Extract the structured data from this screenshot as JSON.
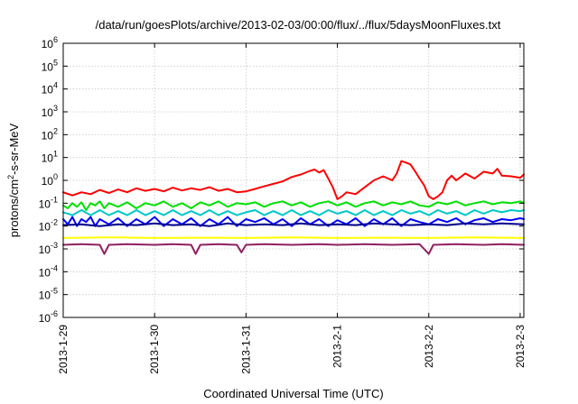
{
  "chart_data": {
    "type": "line",
    "title": "/data/run/goesPlots/archive/2013-02-03/00:00/flux/../flux/5daysMoonFluxes.txt",
    "xlabel": "Coordinated Universal Time (UTC)",
    "ylabel": {
      "base": "protons/cm",
      "sup": "2",
      "rest": "-s-sr-MeV"
    },
    "yscale": "log",
    "ylim": [
      1e-06,
      1000000.0
    ],
    "xlim": [
      0,
      5.04
    ],
    "grid": true,
    "y_ticks": [
      {
        "value": 1e-06,
        "base": "10",
        "exp": "-6"
      },
      {
        "value": 1e-05,
        "base": "10",
        "exp": "-5"
      },
      {
        "value": 0.0001,
        "base": "10",
        "exp": "-4"
      },
      {
        "value": 0.001,
        "base": "10",
        "exp": "-3"
      },
      {
        "value": 0.01,
        "base": "10",
        "exp": "-2"
      },
      {
        "value": 0.1,
        "base": "10",
        "exp": "-1"
      },
      {
        "value": 1,
        "base": "10",
        "exp": "0"
      },
      {
        "value": 10,
        "base": "10",
        "exp": "1"
      },
      {
        "value": 100,
        "base": "10",
        "exp": "2"
      },
      {
        "value": 1000,
        "base": "10",
        "exp": "3"
      },
      {
        "value": 10000,
        "base": "10",
        "exp": "4"
      },
      {
        "value": 100000,
        "base": "10",
        "exp": "5"
      },
      {
        "value": 1000000,
        "base": "10",
        "exp": "6"
      }
    ],
    "x_ticks": [
      {
        "day": 0,
        "label": "2013-1-29"
      },
      {
        "day": 1,
        "label": "2013-1-30"
      },
      {
        "day": 2,
        "label": "2013-1-31"
      },
      {
        "day": 3,
        "label": "2013-2-1"
      },
      {
        "day": 4,
        "label": "2013-2-2"
      },
      {
        "day": 5,
        "label": "2013-2-3"
      }
    ],
    "series": [
      {
        "color": "#ff0000",
        "points": [
          [
            0,
            0.3
          ],
          [
            0.1,
            0.22
          ],
          [
            0.2,
            0.3
          ],
          [
            0.3,
            0.25
          ],
          [
            0.4,
            0.38
          ],
          [
            0.5,
            0.28
          ],
          [
            0.6,
            0.4
          ],
          [
            0.7,
            0.3
          ],
          [
            0.8,
            0.45
          ],
          [
            0.9,
            0.35
          ],
          [
            1.0,
            0.42
          ],
          [
            1.1,
            0.33
          ],
          [
            1.2,
            0.48
          ],
          [
            1.3,
            0.36
          ],
          [
            1.4,
            0.45
          ],
          [
            1.5,
            0.38
          ],
          [
            1.6,
            0.5
          ],
          [
            1.7,
            0.35
          ],
          [
            1.8,
            0.42
          ],
          [
            1.9,
            0.3
          ],
          [
            2.0,
            0.33
          ],
          [
            2.1,
            0.42
          ],
          [
            2.2,
            0.55
          ],
          [
            2.3,
            0.7
          ],
          [
            2.4,
            0.9
          ],
          [
            2.5,
            1.4
          ],
          [
            2.6,
            1.8
          ],
          [
            2.7,
            2.6
          ],
          [
            2.75,
            3.0
          ],
          [
            2.8,
            2.2
          ],
          [
            2.85,
            2.8
          ],
          [
            2.9,
            1.2
          ],
          [
            2.95,
            0.5
          ],
          [
            3.0,
            0.15
          ],
          [
            3.05,
            0.2
          ],
          [
            3.1,
            0.3
          ],
          [
            3.2,
            0.25
          ],
          [
            3.3,
            0.5
          ],
          [
            3.4,
            1.0
          ],
          [
            3.5,
            1.5
          ],
          [
            3.6,
            1.0
          ],
          [
            3.65,
            2.0
          ],
          [
            3.7,
            7.0
          ],
          [
            3.75,
            6.0
          ],
          [
            3.8,
            5.0
          ],
          [
            3.85,
            2.5
          ],
          [
            3.9,
            1.2
          ],
          [
            3.95,
            0.6
          ],
          [
            4.0,
            0.2
          ],
          [
            4.05,
            0.15
          ],
          [
            4.1,
            0.2
          ],
          [
            4.15,
            0.3
          ],
          [
            4.2,
            1.0
          ],
          [
            4.25,
            1.6
          ],
          [
            4.3,
            1.0
          ],
          [
            4.4,
            2.0
          ],
          [
            4.5,
            1.2
          ],
          [
            4.6,
            2.4
          ],
          [
            4.7,
            2.0
          ],
          [
            4.75,
            3.2
          ],
          [
            4.8,
            1.6
          ],
          [
            4.9,
            1.5
          ],
          [
            5.0,
            1.3
          ],
          [
            5.04,
            1.8
          ]
        ]
      },
      {
        "color": "#00e000",
        "points": [
          [
            0,
            0.08
          ],
          [
            0.05,
            0.06
          ],
          [
            0.1,
            0.1
          ],
          [
            0.15,
            0.07
          ],
          [
            0.2,
            0.11
          ],
          [
            0.25,
            0.05
          ],
          [
            0.3,
            0.1
          ],
          [
            0.35,
            0.08
          ],
          [
            0.4,
            0.12
          ],
          [
            0.45,
            0.06
          ],
          [
            0.5,
            0.1
          ],
          [
            0.6,
            0.07
          ],
          [
            0.7,
            0.11
          ],
          [
            0.8,
            0.06
          ],
          [
            0.9,
            0.1
          ],
          [
            1.0,
            0.08
          ],
          [
            1.1,
            0.12
          ],
          [
            1.2,
            0.07
          ],
          [
            1.3,
            0.1
          ],
          [
            1.4,
            0.06
          ],
          [
            1.5,
            0.11
          ],
          [
            1.6,
            0.08
          ],
          [
            1.7,
            0.12
          ],
          [
            1.8,
            0.07
          ],
          [
            1.9,
            0.1
          ],
          [
            2.0,
            0.09
          ],
          [
            2.1,
            0.11
          ],
          [
            2.2,
            0.07
          ],
          [
            2.3,
            0.1
          ],
          [
            2.4,
            0.12
          ],
          [
            2.5,
            0.08
          ],
          [
            2.6,
            0.11
          ],
          [
            2.7,
            0.07
          ],
          [
            2.8,
            0.1
          ],
          [
            2.9,
            0.12
          ],
          [
            3.0,
            0.08
          ],
          [
            3.1,
            0.11
          ],
          [
            3.2,
            0.07
          ],
          [
            3.3,
            0.1
          ],
          [
            3.4,
            0.12
          ],
          [
            3.5,
            0.08
          ],
          [
            3.6,
            0.11
          ],
          [
            3.7,
            0.09
          ],
          [
            3.8,
            0.12
          ],
          [
            3.9,
            0.08
          ],
          [
            4.0,
            0.07
          ],
          [
            4.1,
            0.11
          ],
          [
            4.2,
            0.09
          ],
          [
            4.3,
            0.12
          ],
          [
            4.4,
            0.08
          ],
          [
            4.5,
            0.1
          ],
          [
            4.6,
            0.12
          ],
          [
            4.7,
            0.09
          ],
          [
            4.8,
            0.11
          ],
          [
            4.9,
            0.1
          ],
          [
            5.0,
            0.12
          ],
          [
            5.04,
            0.1
          ]
        ]
      },
      {
        "color": "#00c8c8",
        "points": [
          [
            0,
            0.04
          ],
          [
            0.1,
            0.03
          ],
          [
            0.2,
            0.05
          ],
          [
            0.3,
            0.03
          ],
          [
            0.4,
            0.05
          ],
          [
            0.5,
            0.03
          ],
          [
            0.6,
            0.045
          ],
          [
            0.7,
            0.03
          ],
          [
            0.8,
            0.05
          ],
          [
            0.9,
            0.03
          ],
          [
            1.0,
            0.045
          ],
          [
            1.1,
            0.03
          ],
          [
            1.2,
            0.05
          ],
          [
            1.3,
            0.03
          ],
          [
            1.4,
            0.045
          ],
          [
            1.5,
            0.03
          ],
          [
            1.6,
            0.05
          ],
          [
            1.7,
            0.03
          ],
          [
            1.8,
            0.045
          ],
          [
            1.9,
            0.03
          ],
          [
            2.0,
            0.04
          ],
          [
            2.1,
            0.05
          ],
          [
            2.2,
            0.03
          ],
          [
            2.3,
            0.045
          ],
          [
            2.4,
            0.03
          ],
          [
            2.5,
            0.05
          ],
          [
            2.6,
            0.03
          ],
          [
            2.7,
            0.045
          ],
          [
            2.8,
            0.03
          ],
          [
            2.9,
            0.05
          ],
          [
            3.0,
            0.035
          ],
          [
            3.1,
            0.045
          ],
          [
            3.2,
            0.03
          ],
          [
            3.3,
            0.05
          ],
          [
            3.4,
            0.03
          ],
          [
            3.5,
            0.045
          ],
          [
            3.6,
            0.03
          ],
          [
            3.7,
            0.05
          ],
          [
            3.8,
            0.035
          ],
          [
            3.9,
            0.045
          ],
          [
            4.0,
            0.03
          ],
          [
            4.1,
            0.05
          ],
          [
            4.2,
            0.035
          ],
          [
            4.3,
            0.045
          ],
          [
            4.4,
            0.03
          ],
          [
            4.5,
            0.05
          ],
          [
            4.6,
            0.035
          ],
          [
            4.7,
            0.05
          ],
          [
            4.8,
            0.04
          ],
          [
            4.9,
            0.05
          ],
          [
            5.0,
            0.045
          ],
          [
            5.04,
            0.05
          ]
        ]
      },
      {
        "color": "#0000ff",
        "points": [
          [
            0,
            0.02
          ],
          [
            0.05,
            0.012
          ],
          [
            0.1,
            0.025
          ],
          [
            0.15,
            0.01
          ],
          [
            0.2,
            0.02
          ],
          [
            0.25,
            0.015
          ],
          [
            0.3,
            0.025
          ],
          [
            0.35,
            0.01
          ],
          [
            0.4,
            0.02
          ],
          [
            0.5,
            0.012
          ],
          [
            0.6,
            0.022
          ],
          [
            0.7,
            0.01
          ],
          [
            0.8,
            0.02
          ],
          [
            0.9,
            0.012
          ],
          [
            1.0,
            0.025
          ],
          [
            1.1,
            0.01
          ],
          [
            1.2,
            0.02
          ],
          [
            1.3,
            0.012
          ],
          [
            1.4,
            0.022
          ],
          [
            1.5,
            0.01
          ],
          [
            1.6,
            0.02
          ],
          [
            1.7,
            0.012
          ],
          [
            1.8,
            0.025
          ],
          [
            1.9,
            0.01
          ],
          [
            2.0,
            0.02
          ],
          [
            2.1,
            0.015
          ],
          [
            2.2,
            0.022
          ],
          [
            2.3,
            0.012
          ],
          [
            2.4,
            0.02
          ],
          [
            2.5,
            0.01
          ],
          [
            2.6,
            0.022
          ],
          [
            2.7,
            0.012
          ],
          [
            2.8,
            0.02
          ],
          [
            2.9,
            0.01
          ],
          [
            3.0,
            0.018
          ],
          [
            3.1,
            0.012
          ],
          [
            3.2,
            0.022
          ],
          [
            3.3,
            0.01
          ],
          [
            3.4,
            0.02
          ],
          [
            3.5,
            0.012
          ],
          [
            3.6,
            0.022
          ],
          [
            3.7,
            0.01
          ],
          [
            3.8,
            0.02
          ],
          [
            3.9,
            0.015
          ],
          [
            4.0,
            0.012
          ],
          [
            4.1,
            0.02
          ],
          [
            4.2,
            0.015
          ],
          [
            4.3,
            0.022
          ],
          [
            4.4,
            0.012
          ],
          [
            4.5,
            0.018
          ],
          [
            4.6,
            0.022
          ],
          [
            4.7,
            0.015
          ],
          [
            4.8,
            0.02
          ],
          [
            4.9,
            0.018
          ],
          [
            5.0,
            0.022
          ],
          [
            5.04,
            0.02
          ]
        ]
      },
      {
        "color": "#000090",
        "points": [
          [
            0,
            0.011
          ],
          [
            0.2,
            0.012
          ],
          [
            0.4,
            0.01
          ],
          [
            0.6,
            0.012
          ],
          [
            0.8,
            0.011
          ],
          [
            1.0,
            0.013
          ],
          [
            1.2,
            0.011
          ],
          [
            1.4,
            0.012
          ],
          [
            1.6,
            0.01
          ],
          [
            1.8,
            0.013
          ],
          [
            2.0,
            0.011
          ],
          [
            2.2,
            0.012
          ],
          [
            2.4,
            0.011
          ],
          [
            2.6,
            0.013
          ],
          [
            2.8,
            0.011
          ],
          [
            3.0,
            0.012
          ],
          [
            3.2,
            0.011
          ],
          [
            3.4,
            0.013
          ],
          [
            3.6,
            0.012
          ],
          [
            3.8,
            0.011
          ],
          [
            4.0,
            0.012
          ],
          [
            4.2,
            0.011
          ],
          [
            4.4,
            0.013
          ],
          [
            4.6,
            0.012
          ],
          [
            4.8,
            0.013
          ],
          [
            5.04,
            0.012
          ]
        ]
      },
      {
        "color": "#ffff00",
        "points": [
          [
            0,
            0.003
          ],
          [
            0.5,
            0.0032
          ],
          [
            1.0,
            0.003
          ],
          [
            1.5,
            0.0031
          ],
          [
            2.0,
            0.003
          ],
          [
            2.5,
            0.0032
          ],
          [
            3.0,
            0.003
          ],
          [
            3.5,
            0.0031
          ],
          [
            4.0,
            0.003
          ],
          [
            4.5,
            0.0032
          ],
          [
            5.04,
            0.003
          ]
        ]
      },
      {
        "color": "#902060",
        "points": [
          [
            0,
            0.0015
          ],
          [
            0.2,
            0.0016
          ],
          [
            0.4,
            0.0015
          ],
          [
            0.45,
            0.0006
          ],
          [
            0.5,
            0.0015
          ],
          [
            0.7,
            0.0016
          ],
          [
            1.0,
            0.0015
          ],
          [
            1.2,
            0.0016
          ],
          [
            1.4,
            0.0015
          ],
          [
            1.45,
            0.0006
          ],
          [
            1.5,
            0.0015
          ],
          [
            1.7,
            0.0016
          ],
          [
            1.9,
            0.0015
          ],
          [
            1.95,
            0.0007
          ],
          [
            2.0,
            0.0015
          ],
          [
            2.2,
            0.0016
          ],
          [
            2.5,
            0.0015
          ],
          [
            2.8,
            0.0016
          ],
          [
            3.0,
            0.0015
          ],
          [
            3.3,
            0.0016
          ],
          [
            3.6,
            0.0015
          ],
          [
            3.9,
            0.0016
          ],
          [
            4.0,
            0.0006
          ],
          [
            4.05,
            0.0015
          ],
          [
            4.3,
            0.0016
          ],
          [
            4.6,
            0.0015
          ],
          [
            4.8,
            0.0016
          ],
          [
            5.04,
            0.0015
          ]
        ]
      }
    ]
  }
}
